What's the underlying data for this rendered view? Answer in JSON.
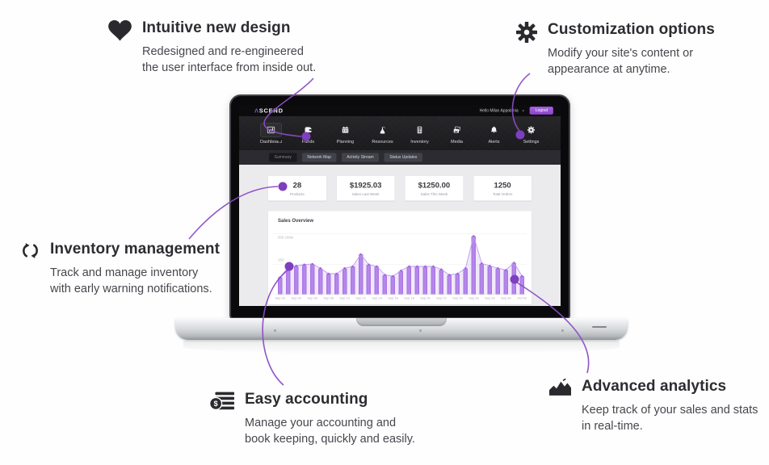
{
  "accent": "#8a4cc4",
  "callouts": [
    {
      "icon": "heart-icon",
      "title": "Intuitive new design",
      "description": "Redesigned and re-engineered\nthe user interface from inside out."
    },
    {
      "icon": "gear-icon",
      "title": "Customization options",
      "description": "Modify your site's content or\nappearance at anytime."
    },
    {
      "icon": "sync-icon",
      "title": "Inventory management",
      "description": "Track and manage inventory\nwith early warning notifications."
    },
    {
      "icon": "coins-icon",
      "title": "Easy accounting",
      "description": "Manage your accounting and\nbook keeping, quickly and easily."
    },
    {
      "icon": "area-chart-icon",
      "title": "Advanced analytics",
      "description": "Keep track of your sales and stats\nin real-time."
    }
  ],
  "dashboard": {
    "logo": {
      "caret": "Λ",
      "rest": "SCEND"
    },
    "topbar": {
      "greeting": "Hello Milan Appolonia",
      "caret": "▾",
      "logout_label": "Logout"
    },
    "nav": [
      {
        "label": "Dashboard",
        "icon": "bar-chart-icon",
        "active": true
      },
      {
        "label": "Funds",
        "icon": "wallet-icon",
        "active": false
      },
      {
        "label": "Planning",
        "icon": "calendar-icon",
        "active": false
      },
      {
        "label": "Resources",
        "icon": "flask-icon",
        "active": false
      },
      {
        "label": "Inventory",
        "icon": "calculator-icon",
        "active": false
      },
      {
        "label": "Media",
        "icon": "photos-icon",
        "active": false
      },
      {
        "label": "Alerts",
        "icon": "bell-icon",
        "active": false
      },
      {
        "label": "Settings",
        "icon": "gear-icon",
        "active": false
      }
    ],
    "tabs": [
      {
        "label": "Summary",
        "active": true
      },
      {
        "label": "Network Map",
        "active": false
      },
      {
        "label": "Activity Stream",
        "active": false
      },
      {
        "label": "Status Updates",
        "active": false
      }
    ],
    "stats": [
      {
        "value": "28",
        "label": "Products"
      },
      {
        "value": "$1925.03",
        "label": "Sales Last Week"
      },
      {
        "value": "$1250.00",
        "label": "Sales This Week"
      },
      {
        "value": "1250",
        "label": "Total Orders"
      }
    ]
  },
  "chart_data": {
    "type": "bar",
    "title": "Sales Overview",
    "ylabel_top": "500 Units",
    "y_tick_mid": "250",
    "ylim": [
      0,
      500
    ],
    "grid": true,
    "x_tick_labels": [
      "Sep 02",
      "Sep 04",
      "Sep 06",
      "Sep 08",
      "Sep 10",
      "Sep 12",
      "Sep 14",
      "Sep 16",
      "Sep 18",
      "Sep 20",
      "Sep 22",
      "Sep 24",
      "Sep 26",
      "Sep 28",
      "Sep 30",
      "Oct 02"
    ],
    "values": [
      140,
      225,
      235,
      245,
      250,
      215,
      170,
      170,
      215,
      230,
      330,
      245,
      230,
      160,
      150,
      195,
      230,
      230,
      230,
      230,
      205,
      160,
      170,
      215,
      480,
      255,
      235,
      215,
      200,
      260,
      150
    ],
    "bar_color": "#ae7ce6",
    "line_color": "#c09bee",
    "dot_color": "#9a63d8"
  }
}
